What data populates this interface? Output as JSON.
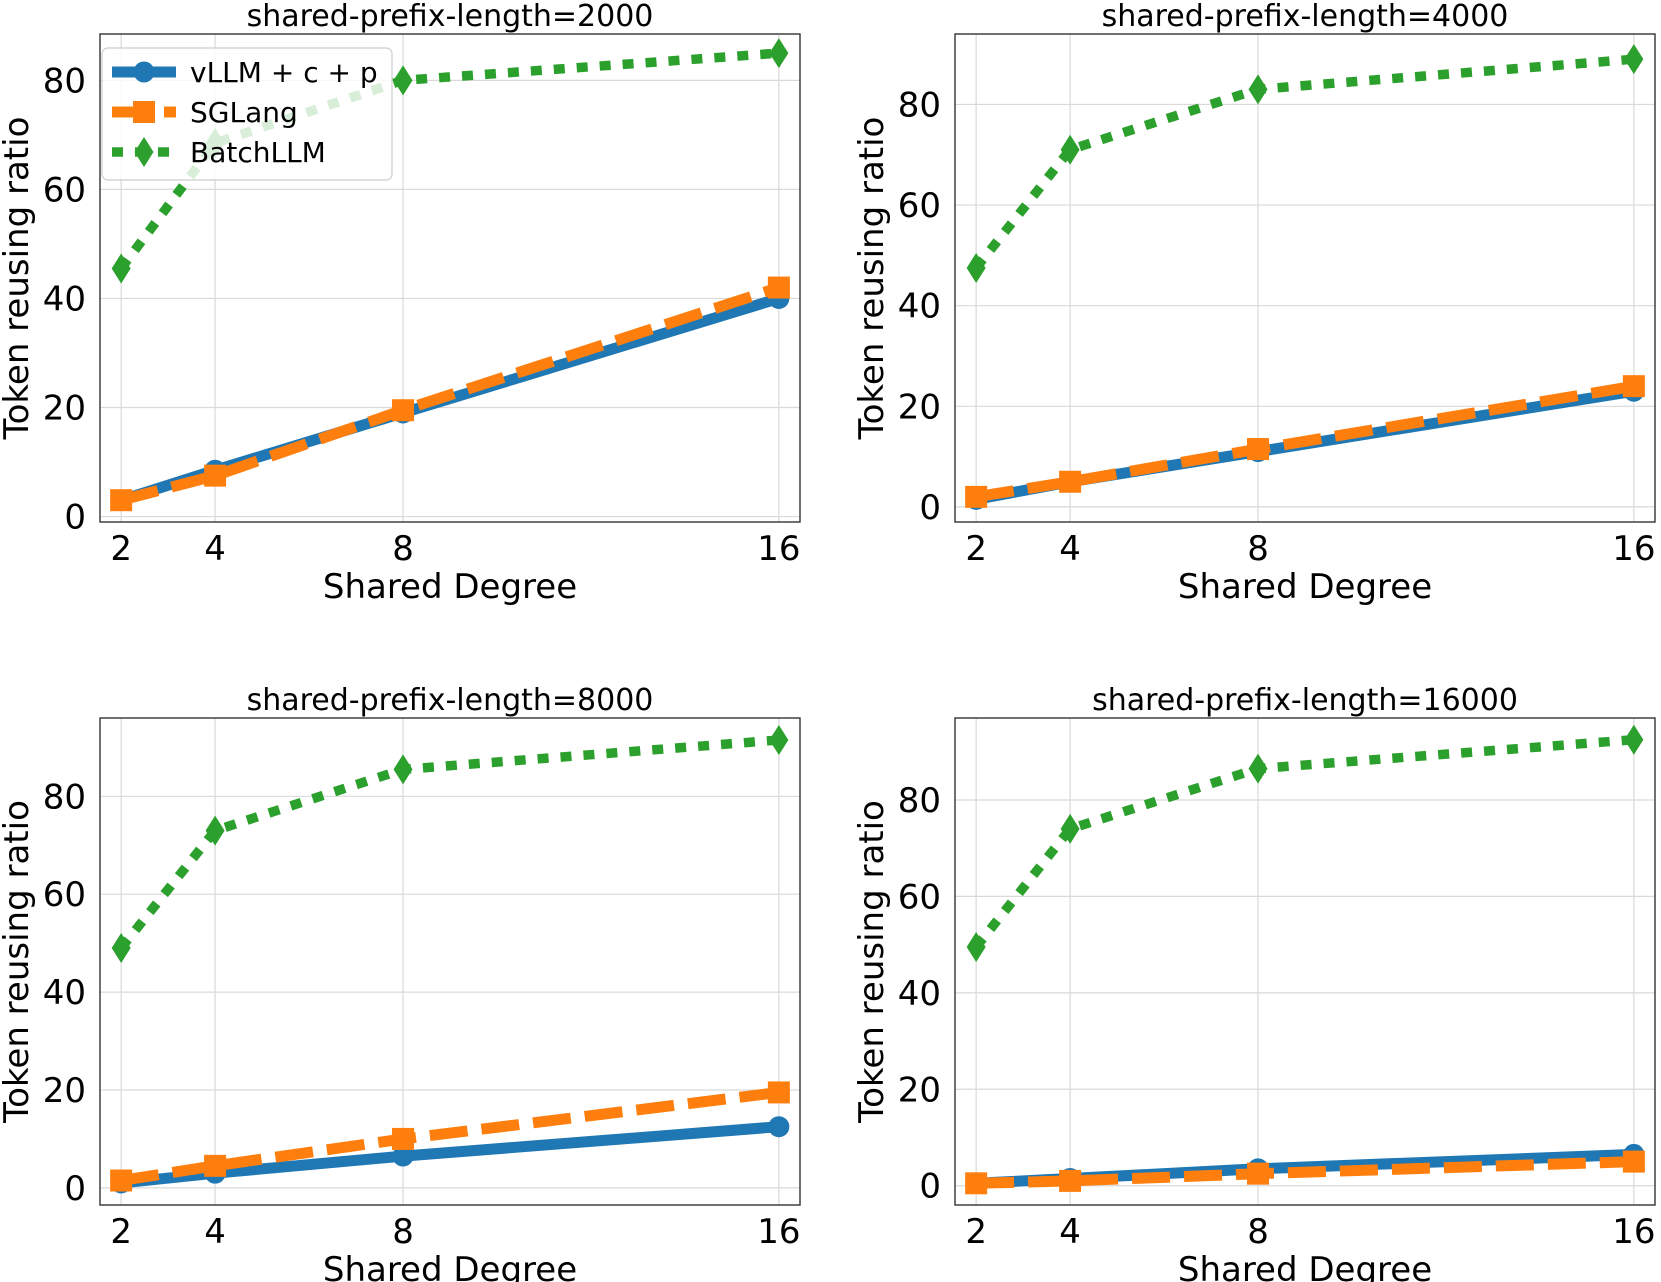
{
  "chart_data": [
    {
      "type": "line",
      "title": "shared-prefix-length=2000",
      "xlabel": "Shared Degree",
      "ylabel": "Token reusing ratio",
      "x": [
        2,
        4,
        8,
        16
      ],
      "xticks": [
        2,
        4,
        8,
        16
      ],
      "yticks": [
        0,
        20,
        40,
        60,
        80
      ],
      "ylim": [
        -1,
        88.5
      ],
      "grid": true,
      "legend": "top-left",
      "series": [
        {
          "name": "vLLM + c + p",
          "values": [
            3,
            8.5,
            19,
            40
          ],
          "color": "#1f77b4"
        },
        {
          "name": "SGLang",
          "values": [
            3,
            7.5,
            19.5,
            42
          ],
          "color": "#ff7f0e"
        },
        {
          "name": "BatchLLM",
          "values": [
            45.5,
            68.5,
            80,
            85
          ],
          "color": "#2ca02c"
        }
      ]
    },
    {
      "type": "line",
      "title": "shared-prefix-length=4000",
      "xlabel": "Shared Degree",
      "ylabel": "Token reusing ratio",
      "x": [
        2,
        4,
        8,
        16
      ],
      "xticks": [
        2,
        4,
        8,
        16
      ],
      "yticks": [
        0,
        20,
        40,
        60,
        80
      ],
      "ylim": [
        -3,
        94
      ],
      "grid": true,
      "series": [
        {
          "name": "vLLM + c + p",
          "values": [
            1.5,
            5,
            11,
            23
          ],
          "color": "#1f77b4"
        },
        {
          "name": "SGLang",
          "values": [
            2,
            5,
            11.5,
            24
          ],
          "color": "#ff7f0e"
        },
        {
          "name": "BatchLLM",
          "values": [
            47.5,
            71,
            83,
            89
          ],
          "color": "#2ca02c"
        }
      ]
    },
    {
      "type": "line",
      "title": "shared-prefix-length=8000",
      "xlabel": "Shared Degree",
      "ylabel": "Token reusing ratio",
      "x": [
        2,
        4,
        8,
        16
      ],
      "xticks": [
        2,
        4,
        8,
        16
      ],
      "yticks": [
        0,
        20,
        40,
        60,
        80
      ],
      "ylim": [
        -3.5,
        96
      ],
      "grid": true,
      "series": [
        {
          "name": "vLLM + c + p",
          "values": [
            1,
            3,
            6.5,
            12.5
          ],
          "color": "#1f77b4"
        },
        {
          "name": "SGLang",
          "values": [
            1.5,
            4.5,
            10,
            19.5
          ],
          "color": "#ff7f0e"
        },
        {
          "name": "BatchLLM",
          "values": [
            49,
            73,
            85.5,
            91.5
          ],
          "color": "#2ca02c"
        }
      ]
    },
    {
      "type": "line",
      "title": "shared-prefix-length=16000",
      "xlabel": "Shared Degree",
      "ylabel": "Token reusing ratio",
      "x": [
        2,
        4,
        8,
        16
      ],
      "xticks": [
        2,
        4,
        8,
        16
      ],
      "yticks": [
        0,
        20,
        40,
        60,
        80
      ],
      "ylim": [
        -4,
        97
      ],
      "grid": true,
      "series": [
        {
          "name": "vLLM + c + p",
          "values": [
            0.5,
            1.5,
            3.5,
            6.5
          ],
          "color": "#1f77b4"
        },
        {
          "name": "SGLang",
          "values": [
            0.5,
            1,
            2.5,
            5
          ],
          "color": "#ff7f0e"
        },
        {
          "name": "BatchLLM",
          "values": [
            49.5,
            74,
            86.5,
            92.5
          ],
          "color": "#2ca02c"
        }
      ]
    }
  ]
}
